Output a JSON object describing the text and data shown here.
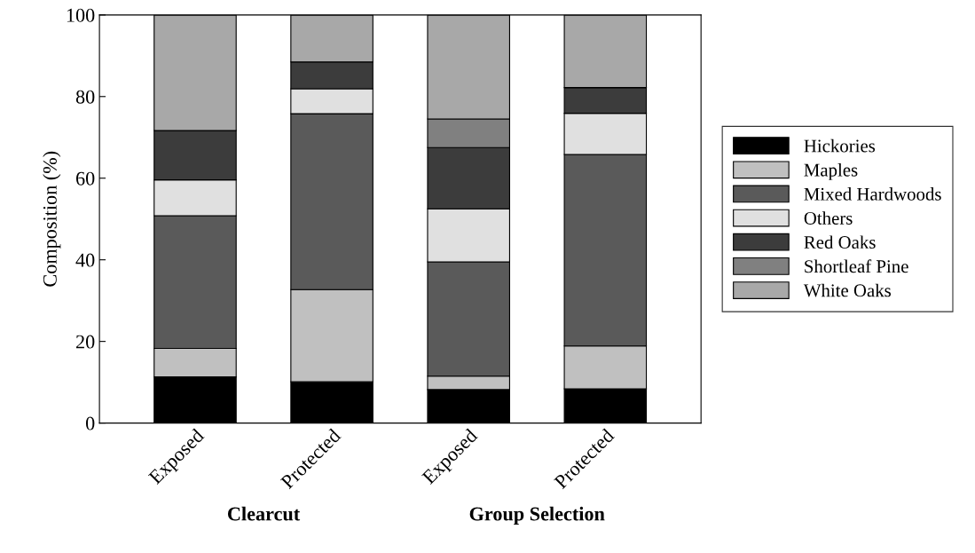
{
  "chart_data": {
    "type": "bar",
    "stacked": true,
    "ylabel": "Composition (%)",
    "categories": [
      "Exposed",
      "Protected",
      "Exposed",
      "Protected"
    ],
    "series": [
      {
        "name": "Hickories",
        "color": "#000000",
        "values": [
          11.3,
          10.1,
          8.2,
          8.4
        ]
      },
      {
        "name": "Maples",
        "color": "#c0c0c0",
        "values": [
          7.0,
          22.6,
          3.3,
          10.5
        ]
      },
      {
        "name": "Mixed Hardwoods",
        "color": "#5a5a5a",
        "values": [
          32.5,
          43.1,
          28.0,
          46.9
        ]
      },
      {
        "name": "Others",
        "color": "#e0e0e0",
        "values": [
          8.8,
          6.1,
          13.0,
          10.1
        ]
      },
      {
        "name": "Red Oaks",
        "color": "#3c3c3c",
        "values": [
          12.1,
          6.6,
          15.0,
          6.3
        ]
      },
      {
        "name": "Shortleaf Pine",
        "color": "#808080",
        "values": [
          0,
          0,
          7.0,
          0
        ]
      },
      {
        "name": "White Oaks",
        "color": "#a8a8a8",
        "values": [
          28.3,
          11.5,
          25.5,
          17.8
        ]
      }
    ],
    "annotations": [
      "Clearcut",
      "Group Selection"
    ],
    "ylim": [
      0,
      100
    ],
    "yticks": [
      0,
      20,
      40,
      60,
      80,
      100
    ],
    "grid": false,
    "legend": "right"
  }
}
